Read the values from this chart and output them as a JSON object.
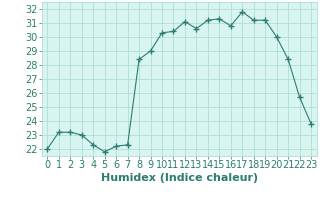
{
  "x": [
    0,
    1,
    2,
    3,
    4,
    5,
    6,
    7,
    8,
    9,
    10,
    11,
    12,
    13,
    14,
    15,
    16,
    17,
    18,
    19,
    20,
    21,
    22,
    23
  ],
  "y": [
    22.0,
    23.2,
    23.2,
    23.0,
    22.3,
    21.8,
    22.2,
    22.3,
    28.4,
    29.0,
    30.3,
    30.4,
    31.1,
    30.6,
    31.2,
    31.3,
    30.8,
    31.8,
    31.2,
    31.2,
    30.0,
    28.4,
    25.7,
    23.8
  ],
  "line_color": "#2e7d6e",
  "marker": "+",
  "marker_size": 4,
  "bg_color": "#d8f5f0",
  "grid_color": "#b0ddd8",
  "xlabel": "Humidex (Indice chaleur)",
  "ylabel_ticks": [
    22,
    23,
    24,
    25,
    26,
    27,
    28,
    29,
    30,
    31,
    32
  ],
  "ylim": [
    21.5,
    32.5
  ],
  "xlim": [
    -0.5,
    23.5
  ],
  "tick_label_color": "#2e7d6e",
  "xlabel_color": "#2e7d6e",
  "xlabel_fontsize": 8,
  "tick_fontsize": 7,
  "fig_bg": "#ffffff"
}
